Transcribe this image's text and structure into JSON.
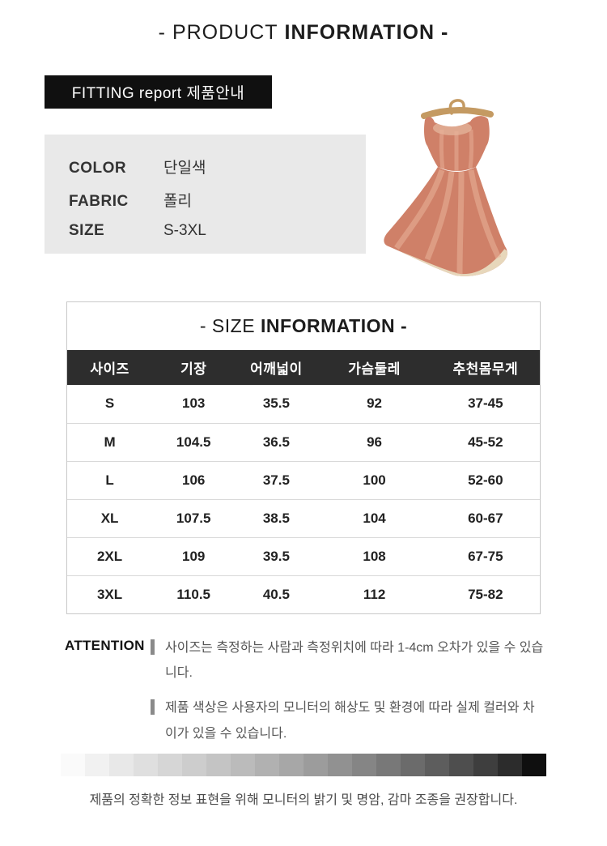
{
  "header": {
    "title_light": "- PRODUCT",
    "title_bold": "INFORMATION -"
  },
  "fitting": {
    "label": "FITTING report 제품안내"
  },
  "product_info": {
    "rows": [
      {
        "label": "COLOR",
        "value": "단일색"
      },
      {
        "label": "FABRIC",
        "value": "폴리"
      },
      {
        "label": "SIZE",
        "value": "S-3XL"
      }
    ]
  },
  "product_photo": {
    "description": "coral-lace-sleeveless-dress-on-wooden-hanger"
  },
  "size_table": {
    "title_light": "- SIZE",
    "title_bold": "INFORMATION -",
    "columns": [
      "사이즈",
      "기장",
      "어깨넓이",
      "가슴둘레",
      "추천몸무게"
    ],
    "rows": [
      [
        "S",
        "103",
        "35.5",
        "92",
        "37-45"
      ],
      [
        "M",
        "104.5",
        "36.5",
        "96",
        "45-52"
      ],
      [
        "L",
        "106",
        "37.5",
        "100",
        "52-60"
      ],
      [
        "XL",
        "107.5",
        "38.5",
        "104",
        "60-67"
      ],
      [
        "2XL",
        "109",
        "39.5",
        "108",
        "67-75"
      ],
      [
        "3XL",
        "110.5",
        "40.5",
        "112",
        "75-82"
      ]
    ]
  },
  "attention": {
    "label": "ATTENTION",
    "notes": [
      "사이즈는 측정하는 사람과 측정위치에 따라 1-4cm 오차가 있을 수 있습니다.",
      "제품 색상은 사용자의 모니터의 해상도 및 환경에 따라 실제 컬러와 차이가 있을 수 있습니다."
    ]
  },
  "calibration": {
    "gray_steps": [
      "#fafafa",
      "#f1f1f1",
      "#e8e8e8",
      "#dfdfdf",
      "#d6d6d6",
      "#cdcdcd",
      "#c4c4c4",
      "#bbbbbb",
      "#b1b1b1",
      "#a7a7a7",
      "#9c9c9c",
      "#919191",
      "#858585",
      "#787878",
      "#6b6b6b",
      "#5d5d5d",
      "#4e4e4e",
      "#3e3e3e",
      "#2c2c2c",
      "#0f0f0f"
    ],
    "note": "제품의 정확한 정보 표현을 위해 모니터의 밝기 및 명암, 감마 조종을 권장합니다."
  },
  "theme": {
    "ink": "#101010",
    "panel": "#e9e9e9",
    "header-row": "#2d2d2d",
    "dress-main": "#cf8068",
    "dress-light": "#e9b29a",
    "dress-hem": "#e7d7bb",
    "hanger": "#c49a62"
  }
}
